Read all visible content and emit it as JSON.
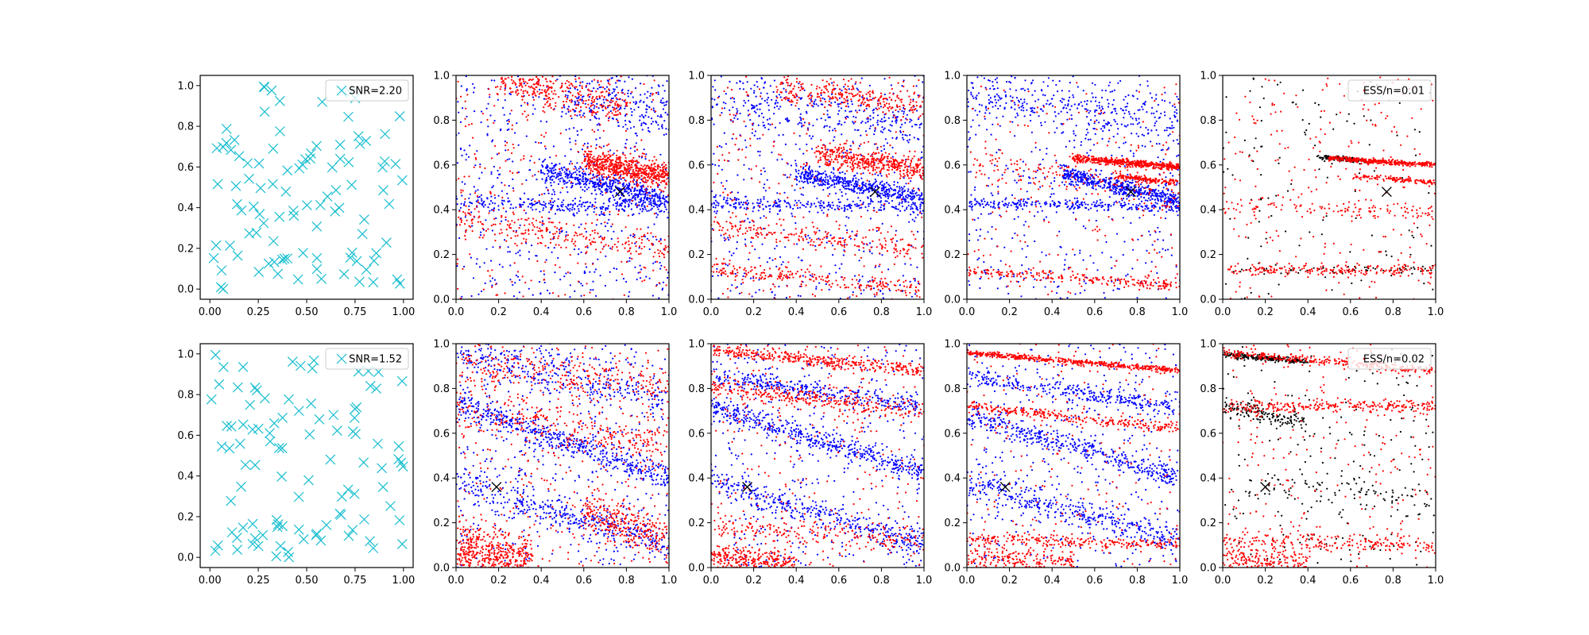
{
  "chart_data": [
    {
      "type": "scatter",
      "panel": "r0c0",
      "kind": "x-markers",
      "xlim": [
        -0.05,
        1.05
      ],
      "ylim": [
        -0.05,
        1.05
      ],
      "xticks": [
        "0.00",
        "0.25",
        "0.50",
        "0.75",
        "1.00"
      ],
      "yticks": [
        "0.0",
        "0.2",
        "0.4",
        "0.6",
        "0.8",
        "1.0"
      ],
      "legend": {
        "label": "SNR=2.20",
        "placement": "top-right",
        "marker_color": "#17becf"
      },
      "marker_color": "#17becf",
      "n_points": 100,
      "seed": 11
    },
    {
      "type": "scatter",
      "panel": "r0c1",
      "kind": "dots",
      "xlim": [
        0,
        1
      ],
      "ylim": [
        0,
        1
      ],
      "xticks": [
        "0.0",
        "0.2",
        "0.4",
        "0.6",
        "0.8",
        "1.0"
      ],
      "yticks": [
        "0.0",
        "0.2",
        "0.4",
        "0.6",
        "0.8",
        "1.0"
      ],
      "series": [
        {
          "color": "#0000ff",
          "clusters": [
            {
              "x0": 0.0,
              "y0": 0.43,
              "slope": -0.02,
              "spread": 0.02,
              "n": 260
            },
            {
              "x0": 0.4,
              "y0": 0.58,
              "x1": 1.0,
              "y1": 0.44,
              "spread": 0.025,
              "n": 520
            },
            {
              "x0": 0.5,
              "y0": 0.9,
              "x1": 1.0,
              "y1": 0.85,
              "spread": 0.06,
              "n": 200
            },
            {
              "uniform": true,
              "n": 500
            }
          ]
        },
        {
          "color": "#ff0000",
          "clusters": [
            {
              "x0": 0.6,
              "y0": 0.62,
              "x1": 1.0,
              "y1": 0.55,
              "spread": 0.03,
              "n": 600
            },
            {
              "x0": 0.2,
              "y0": 0.98,
              "x1": 0.8,
              "y1": 0.86,
              "spread": 0.04,
              "n": 320
            },
            {
              "x0": 0.0,
              "y0": 0.35,
              "x1": 1.0,
              "y1": 0.23,
              "spread": 0.03,
              "n": 220
            },
            {
              "uniform": true,
              "n": 300
            }
          ]
        }
      ],
      "marker": {
        "x": 0.77,
        "y": 0.48,
        "color": "#000000"
      },
      "seed": 21
    },
    {
      "type": "scatter",
      "panel": "r0c2",
      "kind": "dots",
      "xlim": [
        0,
        1
      ],
      "ylim": [
        0,
        1
      ],
      "xticks": [
        "0.0",
        "0.2",
        "0.4",
        "0.6",
        "0.8",
        "1.0"
      ],
      "yticks": [
        "0.0",
        "0.2",
        "0.4",
        "0.6",
        "0.8",
        "1.0"
      ],
      "series": [
        {
          "color": "#0000ff",
          "clusters": [
            {
              "x0": 0.0,
              "y0": 0.43,
              "slope": -0.02,
              "spread": 0.015,
              "n": 240
            },
            {
              "x0": 0.4,
              "y0": 0.56,
              "x1": 1.0,
              "y1": 0.45,
              "spread": 0.02,
              "n": 480
            },
            {
              "x0": 0.0,
              "y0": 0.88,
              "x1": 1.0,
              "y1": 0.78,
              "spread": 0.05,
              "n": 240
            },
            {
              "uniform": true,
              "n": 500
            }
          ]
        },
        {
          "color": "#ff0000",
          "clusters": [
            {
              "x0": 0.5,
              "y0": 0.65,
              "x1": 1.0,
              "y1": 0.58,
              "spread": 0.025,
              "n": 420
            },
            {
              "x0": 0.3,
              "y0": 0.95,
              "x1": 1.0,
              "y1": 0.86,
              "spread": 0.03,
              "n": 260
            },
            {
              "x0": 0.0,
              "y0": 0.14,
              "x1": 1.0,
              "y1": 0.04,
              "spread": 0.02,
              "n": 220
            },
            {
              "x0": 0.0,
              "y0": 0.33,
              "x1": 1.0,
              "y1": 0.22,
              "spread": 0.025,
              "n": 200
            },
            {
              "uniform": true,
              "n": 280
            }
          ]
        }
      ],
      "marker": {
        "x": 0.77,
        "y": 0.48,
        "color": "#000000"
      },
      "seed": 31
    },
    {
      "type": "scatter",
      "panel": "r0c3",
      "kind": "dots",
      "xlim": [
        0,
        1
      ],
      "ylim": [
        0,
        1
      ],
      "xticks": [
        "0.0",
        "0.2",
        "0.4",
        "0.6",
        "0.8",
        "1.0"
      ],
      "yticks": [
        "0.0",
        "0.2",
        "0.4",
        "0.6",
        "0.8",
        "1.0"
      ],
      "series": [
        {
          "color": "#0000ff",
          "clusters": [
            {
              "x0": 0.0,
              "y0": 0.43,
              "slope": -0.02,
              "spread": 0.012,
              "n": 240
            },
            {
              "x0": 0.45,
              "y0": 0.56,
              "x1": 1.0,
              "y1": 0.44,
              "spread": 0.018,
              "n": 500
            },
            {
              "x0": 0.0,
              "y0": 0.92,
              "x1": 1.0,
              "y1": 0.78,
              "spread": 0.06,
              "n": 300
            },
            {
              "uniform": true,
              "n": 450
            }
          ]
        },
        {
          "color": "#ff0000",
          "clusters": [
            {
              "x0": 0.5,
              "y0": 0.63,
              "x1": 1.0,
              "y1": 0.59,
              "spread": 0.008,
              "n": 500
            },
            {
              "x0": 0.7,
              "y0": 0.55,
              "x1": 1.0,
              "y1": 0.52,
              "spread": 0.006,
              "n": 150
            },
            {
              "x0": 0.0,
              "y0": 0.13,
              "x1": 1.0,
              "y1": 0.06,
              "spread": 0.012,
              "n": 220
            },
            {
              "x0": 0.0,
              "y0": 0.6,
              "x1": 1.0,
              "y1": 0.5,
              "spread": 0.04,
              "n": 140
            },
            {
              "uniform": true,
              "n": 200
            }
          ]
        }
      ],
      "marker": {
        "x": 0.77,
        "y": 0.48,
        "color": "#000000"
      },
      "seed": 41
    },
    {
      "type": "scatter",
      "panel": "r0c4",
      "kind": "dots",
      "xlim": [
        0,
        1
      ],
      "ylim": [
        0,
        1
      ],
      "xticks": [
        "0.0",
        "0.2",
        "0.4",
        "0.6",
        "0.8",
        "1.0"
      ],
      "yticks": [
        "0.0",
        "0.2",
        "0.4",
        "0.6",
        "0.8",
        "1.0"
      ],
      "legend": {
        "label": "ESS/n=0.01",
        "placement": "top-right",
        "marker_color": "#ff0000"
      },
      "series": [
        {
          "color": "#000000",
          "clusters": [
            {
              "x0": 0.45,
              "y0": 0.635,
              "x1": 0.65,
              "y1": 0.62,
              "spread": 0.005,
              "n": 120
            },
            {
              "x0": 0.0,
              "y0": 0.13,
              "x1": 1.0,
              "y1": 0.13,
              "spread": 0.01,
              "n": 60
            },
            {
              "uniform": true,
              "n": 120
            }
          ]
        },
        {
          "color": "#ff0000",
          "clusters": [
            {
              "x0": 0.5,
              "y0": 0.63,
              "x1": 1.0,
              "y1": 0.6,
              "spread": 0.006,
              "n": 380
            },
            {
              "x0": 0.6,
              "y0": 0.55,
              "x1": 1.0,
              "y1": 0.52,
              "spread": 0.006,
              "n": 120
            },
            {
              "x0": 0.0,
              "y0": 0.13,
              "x1": 1.0,
              "y1": 0.13,
              "spread": 0.012,
              "n": 200
            },
            {
              "x0": 0.0,
              "y0": 0.42,
              "x1": 1.0,
              "y1": 0.38,
              "spread": 0.02,
              "n": 120
            },
            {
              "uniform": true,
              "n": 240
            }
          ]
        }
      ],
      "marker": {
        "x": 0.77,
        "y": 0.48,
        "color": "#000000"
      },
      "seed": 51
    },
    {
      "type": "scatter",
      "panel": "r1c0",
      "kind": "x-markers",
      "xlim": [
        -0.05,
        1.05
      ],
      "ylim": [
        -0.05,
        1.05
      ],
      "xticks": [
        "0.00",
        "0.25",
        "0.50",
        "0.75",
        "1.00"
      ],
      "yticks": [
        "0.0",
        "0.2",
        "0.4",
        "0.6",
        "0.8",
        "1.0"
      ],
      "legend": {
        "label": "SNR=1.52",
        "placement": "top-right",
        "marker_color": "#17becf"
      },
      "marker_color": "#17becf",
      "n_points": 100,
      "seed": 17
    },
    {
      "type": "scatter",
      "panel": "r1c1",
      "kind": "dots",
      "xlim": [
        0,
        1
      ],
      "ylim": [
        0,
        1
      ],
      "xticks": [
        "0.0",
        "0.2",
        "0.4",
        "0.6",
        "0.8",
        "1.0"
      ],
      "yticks": [
        "0.0",
        "0.2",
        "0.4",
        "0.6",
        "0.8",
        "1.0"
      ],
      "series": [
        {
          "color": "#0000ff",
          "clusters": [
            {
              "x0": 0.0,
              "y0": 0.73,
              "x1": 1.0,
              "y1": 0.4,
              "spread": 0.03,
              "n": 500
            },
            {
              "x0": 0.0,
              "y0": 0.38,
              "x1": 1.0,
              "y1": 0.1,
              "spread": 0.04,
              "n": 380
            },
            {
              "x0": 0.0,
              "y0": 0.95,
              "x1": 1.0,
              "y1": 0.75,
              "spread": 0.05,
              "n": 300
            },
            {
              "uniform": true,
              "n": 400
            }
          ]
        },
        {
          "color": "#ff0000",
          "clusters": [
            {
              "x0": 0.0,
              "y0": 0.08,
              "x1": 0.35,
              "y1": 0.02,
              "spread": 0.06,
              "n": 500
            },
            {
              "x0": 0.0,
              "y0": 0.7,
              "x1": 1.0,
              "y1": 0.55,
              "spread": 0.05,
              "n": 260
            },
            {
              "x0": 0.0,
              "y0": 0.9,
              "x1": 1.0,
              "y1": 0.82,
              "spread": 0.05,
              "n": 260
            },
            {
              "x0": 0.6,
              "y0": 0.25,
              "x1": 1.0,
              "y1": 0.12,
              "spread": 0.05,
              "n": 260
            },
            {
              "uniform": true,
              "n": 350
            }
          ]
        }
      ],
      "marker": {
        "x": 0.19,
        "y": 0.36,
        "color": "#000000"
      },
      "seed": 61
    },
    {
      "type": "scatter",
      "panel": "r1c2",
      "kind": "dots",
      "xlim": [
        0,
        1
      ],
      "ylim": [
        0,
        1
      ],
      "xticks": [
        "0.0",
        "0.2",
        "0.4",
        "0.6",
        "0.8",
        "1.0"
      ],
      "yticks": [
        "0.0",
        "0.2",
        "0.4",
        "0.6",
        "0.8",
        "1.0"
      ],
      "series": [
        {
          "color": "#0000ff",
          "clusters": [
            {
              "x0": 0.0,
              "y0": 0.72,
              "x1": 1.0,
              "y1": 0.42,
              "spread": 0.025,
              "n": 480
            },
            {
              "x0": 0.0,
              "y0": 0.85,
              "x1": 1.0,
              "y1": 0.72,
              "spread": 0.02,
              "n": 300
            },
            {
              "x0": 0.0,
              "y0": 0.38,
              "x1": 1.0,
              "y1": 0.1,
              "spread": 0.03,
              "n": 360
            },
            {
              "uniform": true,
              "n": 400
            }
          ]
        },
        {
          "color": "#ff0000",
          "clusters": [
            {
              "x0": 0.0,
              "y0": 0.97,
              "x1": 1.0,
              "y1": 0.88,
              "spread": 0.015,
              "n": 380
            },
            {
              "x0": 0.0,
              "y0": 0.8,
              "x1": 1.0,
              "y1": 0.7,
              "spread": 0.02,
              "n": 300
            },
            {
              "x0": 0.0,
              "y0": 0.05,
              "x1": 0.4,
              "y1": 0.0,
              "spread": 0.03,
              "n": 300
            },
            {
              "x0": 0.0,
              "y0": 0.18,
              "x1": 1.0,
              "y1": 0.12,
              "spread": 0.03,
              "n": 200
            },
            {
              "uniform": true,
              "n": 280
            }
          ]
        }
      ],
      "marker": {
        "x": 0.17,
        "y": 0.36,
        "color": "#000000"
      },
      "seed": 71
    },
    {
      "type": "scatter",
      "panel": "r1c3",
      "kind": "dots",
      "xlim": [
        0,
        1
      ],
      "ylim": [
        0,
        1
      ],
      "xticks": [
        "0.0",
        "0.2",
        "0.4",
        "0.6",
        "0.8",
        "1.0"
      ],
      "yticks": [
        "0.0",
        "0.2",
        "0.4",
        "0.6",
        "0.8",
        "1.0"
      ],
      "series": [
        {
          "color": "#0000ff",
          "clusters": [
            {
              "x0": 0.0,
              "y0": 0.85,
              "x1": 1.0,
              "y1": 0.72,
              "spread": 0.02,
              "n": 300
            },
            {
              "x0": 0.0,
              "y0": 0.68,
              "x1": 1.0,
              "y1": 0.4,
              "spread": 0.025,
              "n": 420
            },
            {
              "x0": 0.0,
              "y0": 0.38,
              "x1": 1.0,
              "y1": 0.12,
              "spread": 0.03,
              "n": 360
            },
            {
              "uniform": true,
              "n": 400
            }
          ]
        },
        {
          "color": "#ff0000",
          "clusters": [
            {
              "x0": 0.0,
              "y0": 0.96,
              "x1": 1.0,
              "y1": 0.88,
              "spread": 0.006,
              "n": 500
            },
            {
              "x0": 0.0,
              "y0": 0.72,
              "x1": 1.0,
              "y1": 0.62,
              "spread": 0.012,
              "n": 280
            },
            {
              "x0": 0.0,
              "y0": 0.13,
              "x1": 1.0,
              "y1": 0.1,
              "spread": 0.015,
              "n": 240
            },
            {
              "x0": 0.0,
              "y0": 0.04,
              "x1": 0.5,
              "y1": 0.02,
              "spread": 0.03,
              "n": 220
            },
            {
              "uniform": true,
              "n": 220
            }
          ]
        }
      ],
      "marker": {
        "x": 0.18,
        "y": 0.36,
        "color": "#000000"
      },
      "seed": 81
    },
    {
      "type": "scatter",
      "panel": "r1c4",
      "kind": "dots",
      "xlim": [
        0,
        1
      ],
      "ylim": [
        0,
        1
      ],
      "xticks": [
        "0.0",
        "0.2",
        "0.4",
        "0.6",
        "0.8",
        "1.0"
      ],
      "yticks": [
        "0.0",
        "0.2",
        "0.4",
        "0.6",
        "0.8",
        "1.0"
      ],
      "legend": {
        "label": "ESS/n=0.02",
        "placement": "top-right",
        "marker_color": "#ff0000"
      },
      "series": [
        {
          "color": "#000000",
          "clusters": [
            {
              "x0": 0.0,
              "y0": 0.95,
              "x1": 0.4,
              "y1": 0.92,
              "spread": 0.006,
              "n": 220
            },
            {
              "x0": 0.0,
              "y0": 0.72,
              "x1": 0.4,
              "y1": 0.64,
              "spread": 0.02,
              "n": 140
            },
            {
              "x0": 0.0,
              "y0": 0.38,
              "x1": 1.0,
              "y1": 0.3,
              "spread": 0.03,
              "n": 80
            },
            {
              "uniform": true,
              "n": 200
            }
          ]
        },
        {
          "color": "#ff0000",
          "clusters": [
            {
              "x0": 0.0,
              "y0": 0.96,
              "x1": 1.0,
              "y1": 0.88,
              "spread": 0.008,
              "n": 300
            },
            {
              "x0": 0.0,
              "y0": 0.72,
              "x1": 1.0,
              "y1": 0.72,
              "spread": 0.015,
              "n": 260
            },
            {
              "x0": 0.0,
              "y0": 0.13,
              "x1": 1.0,
              "y1": 0.1,
              "spread": 0.02,
              "n": 200
            },
            {
              "x0": 0.0,
              "y0": 0.04,
              "x1": 0.4,
              "y1": 0.02,
              "spread": 0.03,
              "n": 200
            },
            {
              "uniform": true,
              "n": 260
            }
          ]
        }
      ],
      "marker": {
        "x": 0.2,
        "y": 0.36,
        "color": "#000000"
      },
      "seed": 91
    }
  ]
}
